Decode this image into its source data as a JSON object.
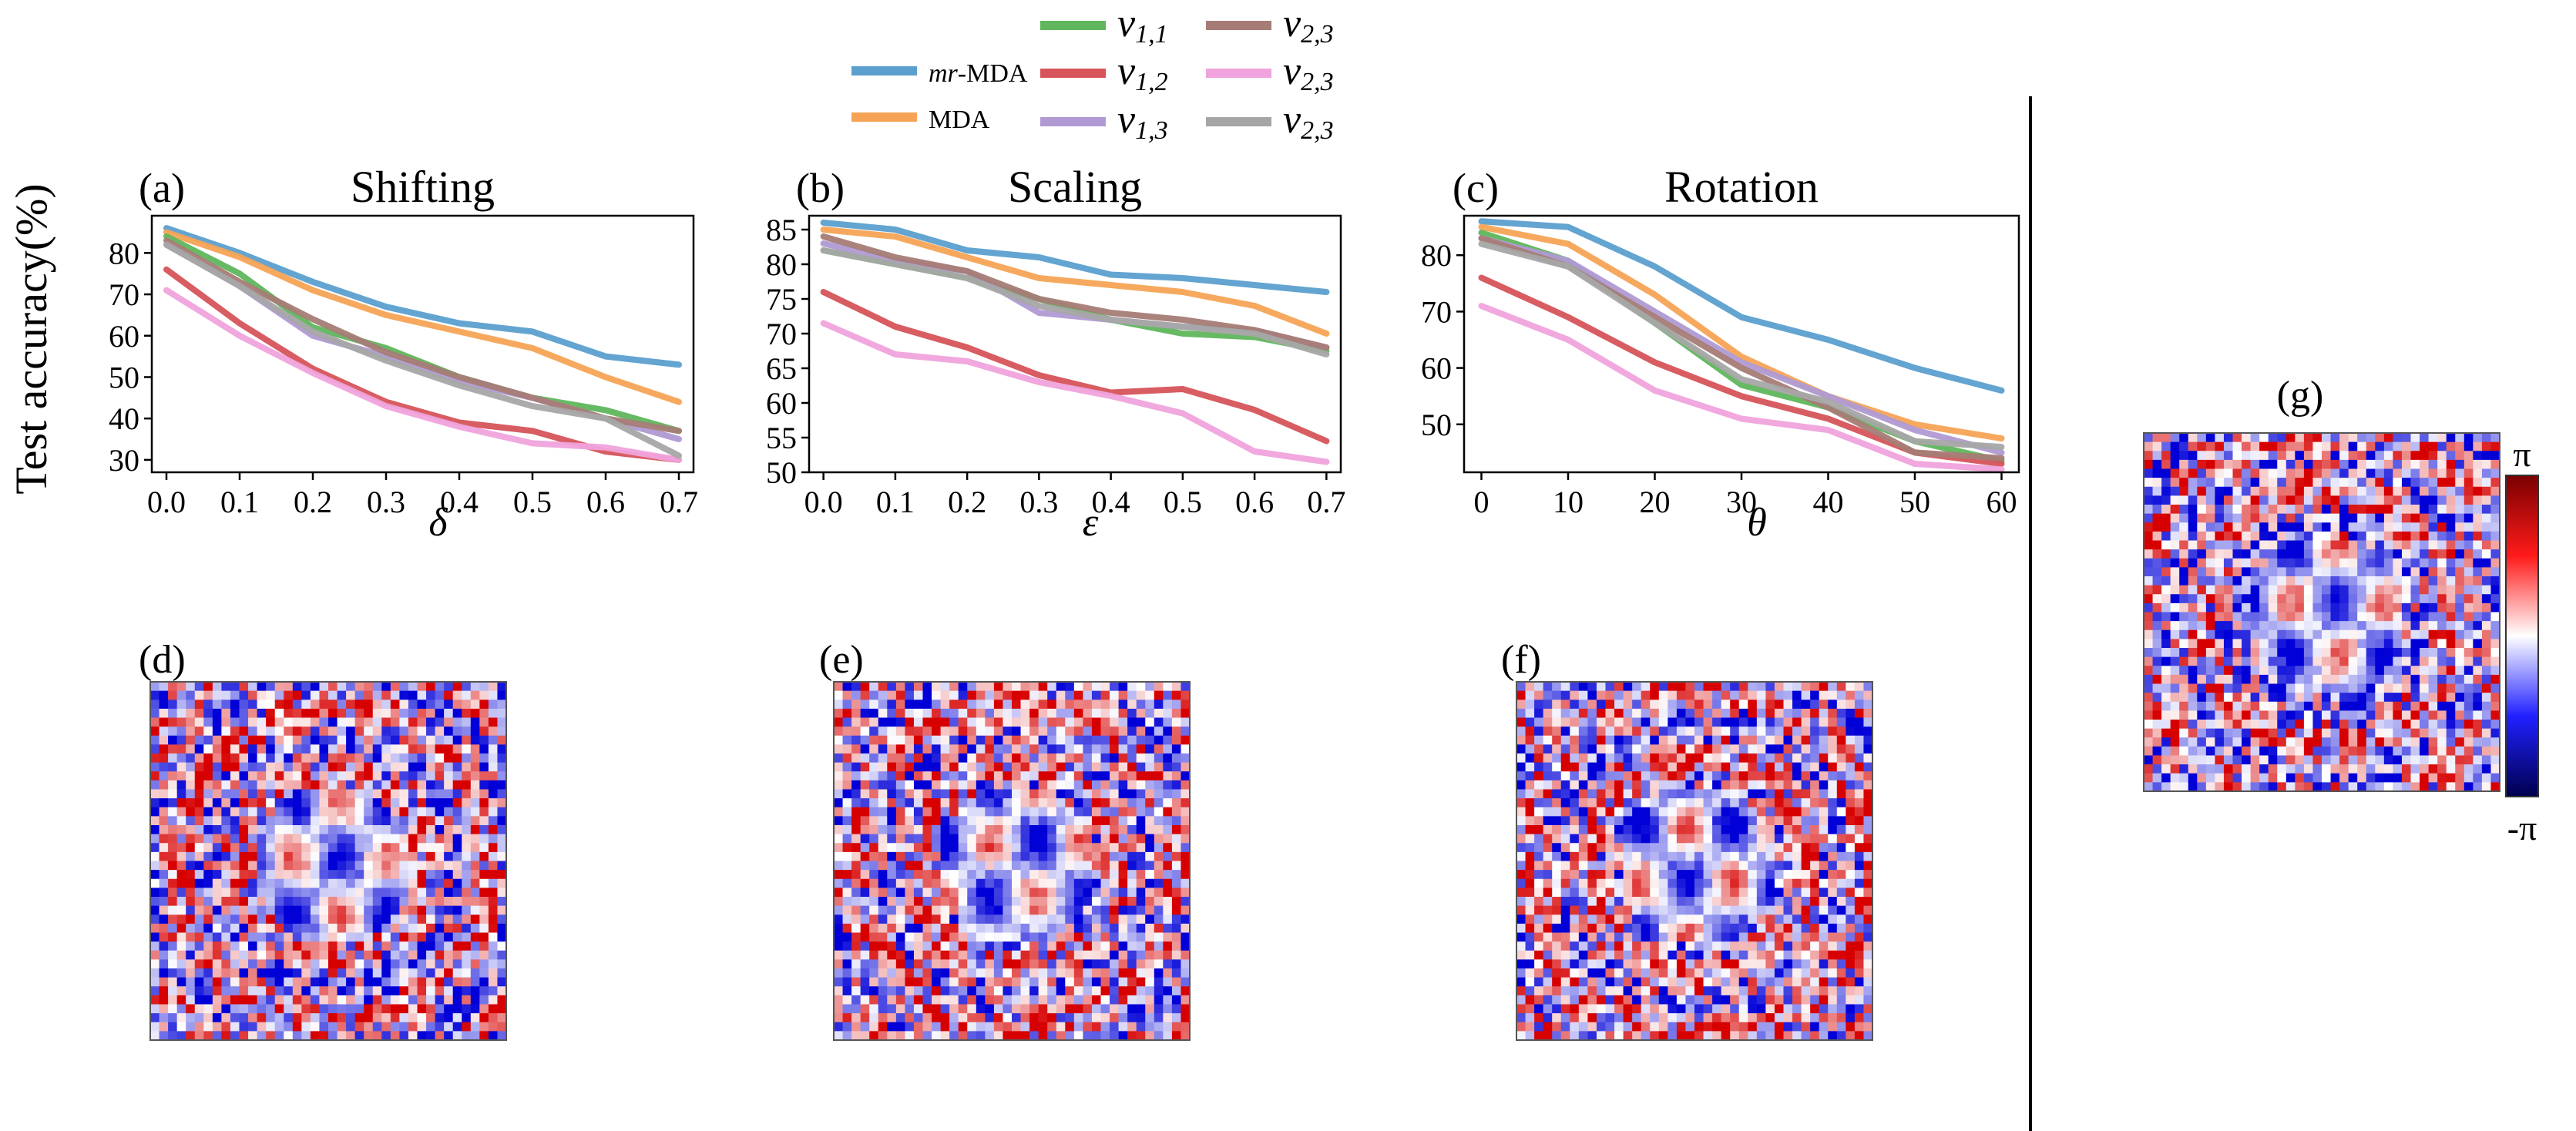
{
  "ylabel": "Test accuracy(%)",
  "legend": {
    "placement": "top-center",
    "items": [
      {
        "name": "mr-MDA",
        "italic_prefix": "mr",
        "rest": "-MDA",
        "color": "#5b9fcf"
      },
      {
        "name": "MDA",
        "italic_prefix": "",
        "rest": "MDA",
        "color": "#f5a455"
      },
      {
        "name": "v1,1",
        "color": "#5fb65c"
      },
      {
        "name": "v1,2",
        "color": "#d6545a"
      },
      {
        "name": "v1,3",
        "color": "#b09ad3"
      },
      {
        "name": "v2,3",
        "color": "#a67c76"
      },
      {
        "name": "v2,3",
        "color": "#f0a3dc"
      },
      {
        "name": "v2,3",
        "color": "#a6a6a6"
      }
    ]
  },
  "chart_data": [
    {
      "type": "line",
      "panel_label": "(a)",
      "title": "Shifting",
      "xlabel": "δ",
      "x": [
        0.0,
        0.1,
        0.2,
        0.3,
        0.4,
        0.5,
        0.6,
        0.7
      ],
      "xticks": [
        "0.0",
        "0.1",
        "0.2",
        "0.3",
        "0.4",
        "0.5",
        "0.6",
        "0.7"
      ],
      "yticks": [
        30,
        40,
        50,
        60,
        70,
        80
      ],
      "xlim": [
        -0.02,
        0.72
      ],
      "ylim": [
        27,
        89
      ],
      "series": [
        {
          "name": "mr-MDA",
          "color": "#5b9fcf",
          "values": [
            86,
            80,
            73,
            67,
            63,
            61,
            55,
            53
          ]
        },
        {
          "name": "MDA",
          "color": "#f5a455",
          "values": [
            85,
            79,
            71,
            65,
            61,
            57,
            50,
            44
          ]
        },
        {
          "name": "v1,1",
          "color": "#5fb65c",
          "values": [
            84,
            75,
            62,
            57,
            50,
            45,
            42,
            37
          ]
        },
        {
          "name": "v1,2",
          "color": "#d6545a",
          "values": [
            76,
            63,
            52,
            44,
            39,
            37,
            32,
            30
          ]
        },
        {
          "name": "v1,3",
          "color": "#b09ad3",
          "values": [
            82,
            72,
            60,
            55,
            49,
            45,
            40,
            35
          ]
        },
        {
          "name": "v2,3",
          "color": "#a67c76",
          "values": [
            83,
            73,
            64,
            56,
            50,
            45,
            40,
            37
          ]
        },
        {
          "name": "v2,3",
          "color": "#f0a3dc",
          "values": [
            71,
            60,
            51,
            43,
            38,
            34,
            33,
            30
          ]
        },
        {
          "name": "v2,3",
          "color": "#a6a6a6",
          "values": [
            82,
            72,
            61,
            54,
            48,
            43,
            40,
            31
          ]
        }
      ]
    },
    {
      "type": "line",
      "panel_label": "(b)",
      "title": "Scaling",
      "xlabel": "ε",
      "x": [
        0.0,
        0.1,
        0.2,
        0.3,
        0.4,
        0.5,
        0.6,
        0.7
      ],
      "xticks": [
        "0.0",
        "0.1",
        "0.2",
        "0.3",
        "0.4",
        "0.5",
        "0.6",
        "0.7"
      ],
      "yticks": [
        50,
        55,
        60,
        65,
        70,
        75,
        80,
        85
      ],
      "xlim": [
        -0.02,
        0.72
      ],
      "ylim": [
        50,
        87
      ],
      "series": [
        {
          "name": "mr-MDA",
          "color": "#5b9fcf",
          "values": [
            86,
            85,
            82,
            81,
            78.5,
            78,
            77,
            76
          ]
        },
        {
          "name": "MDA",
          "color": "#f5a455",
          "values": [
            85,
            84,
            81,
            78,
            77,
            76,
            74,
            70
          ]
        },
        {
          "name": "v1,1",
          "color": "#5fb65c",
          "values": [
            82,
            80,
            78,
            75,
            72,
            70,
            69.5,
            67.5
          ]
        },
        {
          "name": "v1,2",
          "color": "#d6545a",
          "values": [
            76,
            71,
            68,
            64,
            61.5,
            62,
            59,
            54.5
          ]
        },
        {
          "name": "v1,3",
          "color": "#b09ad3",
          "values": [
            83,
            80.5,
            79,
            73,
            72,
            71,
            70.5,
            68
          ]
        },
        {
          "name": "v2,3",
          "color": "#a67c76",
          "values": [
            84,
            81,
            79,
            75,
            73,
            72,
            70.5,
            68
          ]
        },
        {
          "name": "v2,3",
          "color": "#f0a3dc",
          "values": [
            71.5,
            67,
            66,
            63,
            61,
            58.5,
            53,
            51.5
          ]
        },
        {
          "name": "v2,3",
          "color": "#a6a6a6",
          "values": [
            82,
            80,
            78,
            74,
            72,
            71,
            70,
            67
          ]
        }
      ]
    },
    {
      "type": "line",
      "panel_label": "(c)",
      "title": "Rotation",
      "xlabel": "θ",
      "x": [
        0,
        10,
        20,
        30,
        40,
        50,
        60
      ],
      "xticks": [
        "0",
        "10",
        "20",
        "30",
        "40",
        "50",
        "60"
      ],
      "yticks": [
        50,
        60,
        70,
        80
      ],
      "xlim": [
        -2,
        62
      ],
      "ylim": [
        41.5,
        87
      ],
      "series": [
        {
          "name": "mr-MDA",
          "color": "#5b9fcf",
          "values": [
            86,
            85,
            78,
            69,
            65,
            60,
            56
          ]
        },
        {
          "name": "MDA",
          "color": "#f5a455",
          "values": [
            85,
            82,
            73,
            62,
            55,
            50,
            47.5
          ]
        },
        {
          "name": "v1,1",
          "color": "#5fb65c",
          "values": [
            84,
            79,
            68,
            57,
            53,
            47,
            43.5
          ]
        },
        {
          "name": "v1,2",
          "color": "#d6545a",
          "values": [
            76,
            69,
            61,
            55,
            51,
            45,
            43
          ]
        },
        {
          "name": "v1,3",
          "color": "#b09ad3",
          "values": [
            83,
            79,
            70,
            61,
            55,
            49,
            45
          ]
        },
        {
          "name": "v2,3",
          "color": "#a67c76",
          "values": [
            83,
            78,
            69,
            60,
            53,
            45,
            44
          ]
        },
        {
          "name": "v2,3",
          "color": "#f0a3dc",
          "values": [
            71,
            65,
            56,
            51,
            49,
            43,
            42
          ]
        },
        {
          "name": "v2,3",
          "color": "#a6a6a6",
          "values": [
            82,
            78,
            68,
            58,
            54,
            47,
            46
          ]
        }
      ]
    }
  ],
  "phase_images": [
    {
      "label": "(d)",
      "seed": 11
    },
    {
      "label": "(e)",
      "seed": 29
    },
    {
      "label": "(f)",
      "seed": 47
    },
    {
      "label": "(g)",
      "seed": 83
    }
  ],
  "colorbar": {
    "max_label": "π",
    "min_label": "-π"
  }
}
